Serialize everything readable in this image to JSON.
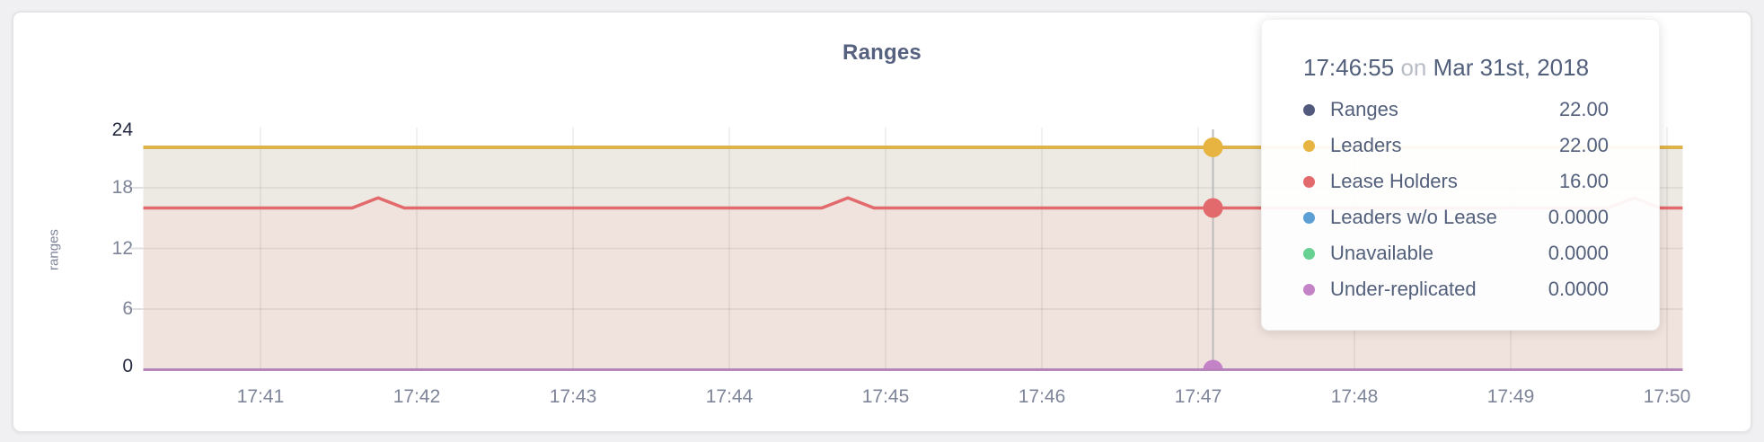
{
  "panel": {
    "title": "Ranges"
  },
  "y_axis": {
    "title": "ranges",
    "ticks": [
      "24",
      "18",
      "12",
      "6",
      "0"
    ]
  },
  "x_axis": {
    "ticks": [
      "17:41",
      "17:42",
      "17:43",
      "17:44",
      "17:45",
      "17:46",
      "17:47",
      "17:48",
      "17:49",
      "17:50"
    ]
  },
  "tooltip": {
    "time": "17:46:55",
    "on_word": "on",
    "date": "Mar 31st, 2018",
    "rows": [
      {
        "label": "Ranges",
        "value": "22.00",
        "color": "#515a7c"
      },
      {
        "label": "Leaders",
        "value": "22.00",
        "color": "#e7b441"
      },
      {
        "label": "Lease Holders",
        "value": "16.00",
        "color": "#e26a6c"
      },
      {
        "label": "Leaders w/o Lease",
        "value": "0.0000",
        "color": "#5b9fd4"
      },
      {
        "label": "Unavailable",
        "value": "0.0000",
        "color": "#67d193"
      },
      {
        "label": "Under-replicated",
        "value": "0.0000",
        "color": "#c583c7"
      }
    ]
  },
  "chart_data": {
    "type": "area",
    "title": "Ranges",
    "xlabel": "",
    "ylabel": "ranges",
    "ylim": [
      0,
      24
    ],
    "y_ticks": [
      0,
      6,
      12,
      18,
      24
    ],
    "grid": true,
    "x_tick_labels": [
      "17:41",
      "17:42",
      "17:43",
      "17:44",
      "17:45",
      "17:46",
      "17:47",
      "17:48",
      "17:49",
      "17:50"
    ],
    "x_tick_minutes": [
      41,
      42,
      43,
      44,
      45,
      46,
      47,
      48,
      49,
      50
    ],
    "x_range_minutes": [
      40.25,
      50.1
    ],
    "series": [
      {
        "name": "Ranges",
        "color": "#515a7c",
        "points": [
          [
            40.25,
            22
          ],
          [
            50.1,
            22
          ]
        ]
      },
      {
        "name": "Leaders",
        "color": "#e5b43d",
        "points": [
          [
            40.25,
            22
          ],
          [
            50.1,
            22
          ]
        ]
      },
      {
        "name": "Lease Holders",
        "color": "#e26a6c",
        "points": [
          [
            40.25,
            16
          ],
          [
            41.586,
            16
          ],
          [
            41.753,
            17
          ],
          [
            41.92,
            16
          ],
          [
            44.592,
            16
          ],
          [
            44.759,
            17
          ],
          [
            44.926,
            16
          ],
          [
            49.623,
            16
          ],
          [
            49.79,
            17
          ],
          [
            49.957,
            16
          ],
          [
            50.1,
            16
          ]
        ]
      },
      {
        "name": "Leaders w/o Lease",
        "color": "#5b9fd4",
        "points": [
          [
            40.25,
            0
          ],
          [
            50.1,
            0
          ]
        ]
      },
      {
        "name": "Unavailable",
        "color": "#67d193",
        "points": [
          [
            40.25,
            0
          ],
          [
            50.1,
            0
          ]
        ]
      },
      {
        "name": "Under-replicated",
        "color": "#ba80bc",
        "points": [
          [
            40.25,
            0
          ],
          [
            50.1,
            0
          ]
        ]
      }
    ],
    "bands": [
      {
        "top": "Leaders",
        "bottom": "Lease Holders",
        "fill": "#edeae3"
      },
      {
        "top": "Lease Holders",
        "bottom": null,
        "fill": "#f0e2dc"
      }
    ],
    "grid_color": "rgba(0,0,0,0.075)",
    "axis_dash_color": "#e0e0e0",
    "hover": {
      "time": "17:46:55",
      "x_minutes": 47.095,
      "line_color": "#bcbcbc",
      "points": [
        {
          "series": "Leaders",
          "value": 22,
          "color": "#e7b441"
        },
        {
          "series": "Lease Holders",
          "value": 16,
          "color": "#e26a6c"
        },
        {
          "series": "Under-replicated",
          "value": 0,
          "color": "#c583c7"
        }
      ]
    }
  }
}
